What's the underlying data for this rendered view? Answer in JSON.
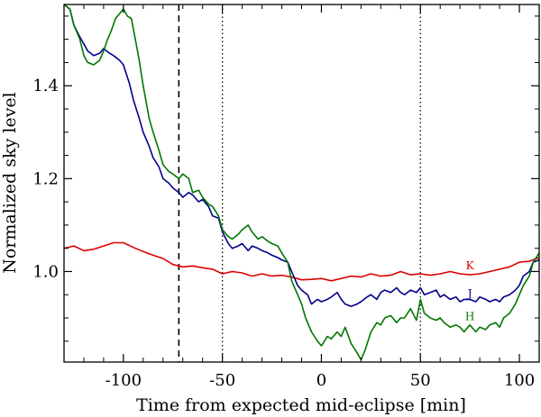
{
  "chart_data": {
    "type": "line",
    "title": "",
    "xlabel": "Time from expected mid-eclipse [min]",
    "ylabel": "Normalized sky level",
    "xlim": [
      -130,
      110
    ],
    "ylim": [
      0.805,
      1.575
    ],
    "x_ticks": [
      -100,
      -50,
      0,
      50,
      100
    ],
    "x_tick_labels": [
      "-100",
      "-50",
      "0",
      "50",
      "100"
    ],
    "y_ticks": [
      1.0,
      1.2,
      1.4
    ],
    "y_tick_labels": [
      "1.0",
      "1.2",
      "1.4"
    ],
    "grid": false,
    "vlines": [
      {
        "x": -72,
        "style": "dashed"
      },
      {
        "x": -50,
        "style": "dotted"
      },
      {
        "x": 50,
        "style": "dotted"
      }
    ],
    "series": [
      {
        "name": "K",
        "color": "#dd0000",
        "x": [
          -130,
          -125,
          -120,
          -115,
          -110,
          -105,
          -100,
          -95,
          -90,
          -85,
          -80,
          -75,
          -70,
          -65,
          -60,
          -55,
          -50,
          -45,
          -40,
          -35,
          -30,
          -25,
          -20,
          -15,
          -10,
          -5,
          0,
          5,
          10,
          15,
          20,
          25,
          30,
          35,
          40,
          45,
          50,
          55,
          60,
          65,
          70,
          75,
          80,
          85,
          90,
          95,
          100,
          105,
          110
        ],
        "values": [
          1.05,
          1.055,
          1.045,
          1.048,
          1.055,
          1.062,
          1.062,
          1.052,
          1.043,
          1.035,
          1.028,
          1.015,
          1.01,
          1.012,
          1.008,
          1.005,
          0.995,
          1.0,
          0.997,
          0.99,
          0.995,
          0.99,
          0.992,
          0.988,
          0.982,
          0.983,
          0.985,
          0.98,
          0.985,
          0.99,
          0.988,
          0.995,
          0.99,
          0.992,
          1.0,
          0.993,
          0.995,
          0.992,
          0.995,
          1.0,
          0.995,
          0.993,
          0.995,
          1.0,
          1.005,
          1.01,
          1.02,
          1.022,
          1.03
        ],
        "label_at": {
          "x": 75,
          "y": 1.005
        },
        "label_color": "#cc0000"
      },
      {
        "name": "J",
        "color": "#00008b",
        "x": [
          -130,
          -127,
          -125,
          -122,
          -120,
          -118,
          -115,
          -112,
          -110,
          -107,
          -105,
          -102,
          -100,
          -97,
          -95,
          -92,
          -90,
          -87,
          -85,
          -82,
          -80,
          -77,
          -75,
          -72,
          -70,
          -67,
          -65,
          -62,
          -60,
          -57,
          -55,
          -52,
          -50,
          -47,
          -45,
          -42,
          -40,
          -37,
          -35,
          -32,
          -30,
          -27,
          -25,
          -22,
          -20,
          -17,
          -15,
          -12,
          -10,
          -7,
          -5,
          -2,
          0,
          3,
          5,
          8,
          10,
          12,
          15,
          18,
          20,
          23,
          25,
          28,
          30,
          32,
          35,
          38,
          40,
          42,
          45,
          48,
          50,
          52,
          55,
          58,
          60,
          62,
          65,
          68,
          70,
          72,
          75,
          78,
          80,
          83,
          85,
          88,
          90,
          92,
          95,
          98,
          100,
          102,
          105,
          107,
          110
        ],
        "values": [
          1.575,
          1.565,
          1.53,
          1.505,
          1.49,
          1.475,
          1.465,
          1.47,
          1.48,
          1.47,
          1.465,
          1.455,
          1.445,
          1.405,
          1.37,
          1.33,
          1.3,
          1.27,
          1.245,
          1.225,
          1.2,
          1.19,
          1.18,
          1.17,
          1.16,
          1.17,
          1.165,
          1.15,
          1.155,
          1.14,
          1.12,
          1.115,
          1.085,
          1.06,
          1.05,
          1.055,
          1.06,
          1.045,
          1.055,
          1.05,
          1.045,
          1.04,
          1.035,
          1.03,
          1.025,
          1.02,
          1.0,
          0.97,
          0.96,
          0.95,
          0.93,
          0.94,
          0.935,
          0.94,
          0.945,
          0.955,
          0.94,
          0.93,
          0.925,
          0.93,
          0.935,
          0.945,
          0.95,
          0.94,
          0.955,
          0.96,
          0.955,
          0.965,
          0.955,
          0.95,
          0.96,
          0.955,
          0.965,
          0.95,
          0.955,
          0.96,
          0.945,
          0.95,
          0.94,
          0.945,
          0.935,
          0.94,
          0.94,
          0.935,
          0.945,
          0.94,
          0.935,
          0.94,
          0.935,
          0.945,
          0.95,
          0.96,
          0.97,
          0.99,
          1.0,
          1.02,
          1.025
        ],
        "label_at": {
          "x": 75,
          "y": 0.945
        },
        "label_color": "#00008b"
      },
      {
        "name": "H",
        "color": "#007700",
        "x": [
          -130,
          -127,
          -125,
          -122,
          -120,
          -118,
          -115,
          -112,
          -110,
          -108,
          -106,
          -104,
          -102,
          -100,
          -98,
          -96,
          -94,
          -92,
          -90,
          -87,
          -85,
          -82,
          -80,
          -77,
          -75,
          -72,
          -70,
          -67,
          -65,
          -62,
          -60,
          -57,
          -55,
          -52,
          -50,
          -47,
          -45,
          -42,
          -40,
          -37,
          -35,
          -32,
          -30,
          -27,
          -25,
          -22,
          -20,
          -17,
          -15,
          -12,
          -10,
          -8,
          -5,
          -2,
          0,
          3,
          5,
          8,
          10,
          12,
          15,
          18,
          20,
          22,
          25,
          28,
          30,
          32,
          35,
          38,
          40,
          42,
          45,
          48,
          50,
          52,
          55,
          58,
          60,
          62,
          65,
          68,
          70,
          72,
          75,
          78,
          80,
          83,
          85,
          88,
          90,
          92,
          95,
          98,
          100,
          102,
          105,
          107,
          110
        ],
        "values": [
          1.575,
          1.565,
          1.53,
          1.5,
          1.465,
          1.45,
          1.445,
          1.455,
          1.475,
          1.5,
          1.52,
          1.545,
          1.555,
          1.565,
          1.55,
          1.545,
          1.5,
          1.455,
          1.4,
          1.33,
          1.3,
          1.26,
          1.23,
          1.215,
          1.21,
          1.2,
          1.21,
          1.2,
          1.17,
          1.175,
          1.16,
          1.145,
          1.14,
          1.12,
          1.09,
          1.075,
          1.07,
          1.08,
          1.09,
          1.1,
          1.085,
          1.07,
          1.075,
          1.065,
          1.06,
          1.055,
          1.04,
          1.02,
          0.98,
          0.95,
          0.93,
          0.9,
          0.87,
          0.85,
          0.84,
          0.86,
          0.855,
          0.87,
          0.86,
          0.88,
          0.845,
          0.825,
          0.81,
          0.83,
          0.87,
          0.89,
          0.885,
          0.9,
          0.905,
          0.89,
          0.9,
          0.9,
          0.92,
          0.895,
          0.94,
          0.91,
          0.9,
          0.895,
          0.9,
          0.89,
          0.88,
          0.885,
          0.88,
          0.87,
          0.885,
          0.87,
          0.88,
          0.875,
          0.885,
          0.89,
          0.88,
          0.9,
          0.91,
          0.93,
          0.95,
          0.97,
          0.99,
          1.02,
          1.04
        ],
        "label_at": {
          "x": 75,
          "y": 0.895
        },
        "label_color": "#007700"
      }
    ]
  }
}
